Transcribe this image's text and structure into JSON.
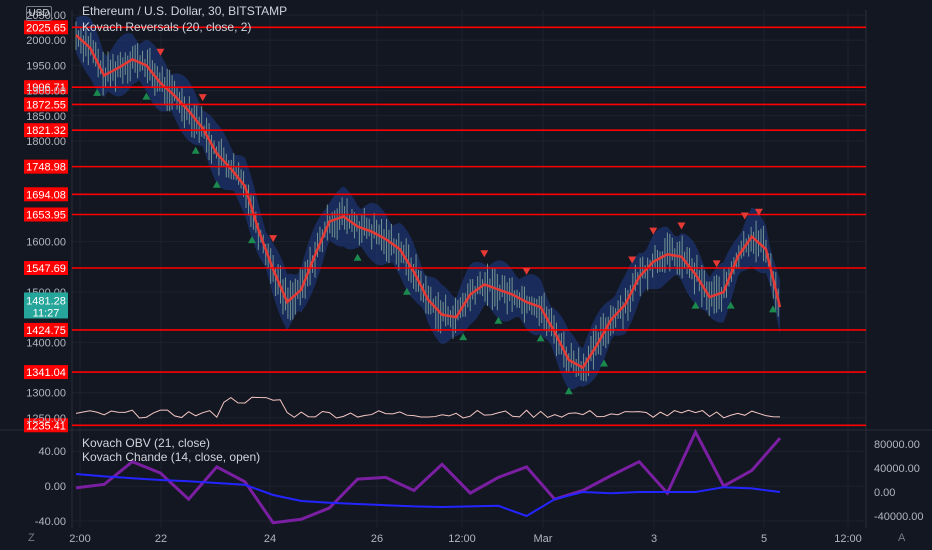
{
  "header": {
    "currency": "USD",
    "title": "Ethereum / U.S. Dollar, 30, BITSTAMP",
    "indicator1": "Kovach Reversals (20, close, 2)",
    "indicator2": "Kovach OBV (21, close)",
    "indicator3": "Kovach Chande (14, close, open)"
  },
  "current_price": {
    "value": "1481.28",
    "countdown": "11:27",
    "color": "#26a69a"
  },
  "footer": {
    "left_icon": "Z",
    "right_icon": "A"
  },
  "colors": {
    "level_line": "#ff0000",
    "band_fill": "#1f3c88",
    "mid_line": "#e53935",
    "candle": "#8fb8a6",
    "sell_marker": "#e53935",
    "buy_marker": "#1b8a4e",
    "obv_line": "#2424ff",
    "chande_line": "#7b1fa2",
    "volume_line": "#f4c7c3"
  },
  "chart_data": [
    {
      "type": "line",
      "title": "Ethereum / U.S. Dollar, 30, BITSTAMP",
      "x_ticks": [
        "2:00",
        "22",
        "24",
        "26",
        "12:00",
        "Mar",
        "3",
        "5",
        "12:00"
      ],
      "y_ticks": [
        "2050.00",
        "2000.00",
        "1950.00",
        "1900.00",
        "1850.00",
        "1800.00",
        "1600.00",
        "1500.00",
        "1400.00",
        "1300.00",
        "1250.00"
      ],
      "ylim": [
        1230,
        2060
      ],
      "levels": [
        "2025.65",
        "1906.71",
        "1872.55",
        "1821.32",
        "1748.98",
        "1694.08",
        "1653.95",
        "1547.69",
        "1424.75",
        "1341.04",
        "1235.41"
      ],
      "series": [
        {
          "x": [
            0,
            2,
            4,
            6,
            8,
            10,
            12,
            14,
            16,
            18,
            20,
            22,
            24,
            26,
            28,
            30,
            32,
            34,
            36,
            38,
            40,
            42,
            44,
            46,
            48,
            50,
            52,
            54,
            56,
            58,
            60,
            62,
            64,
            66,
            68,
            70,
            72,
            74,
            76,
            78,
            80,
            82,
            84,
            86,
            88,
            90,
            92,
            94,
            96,
            98,
            100
          ],
          "values": [
            2010,
            1985,
            1930,
            1945,
            1962,
            1950,
            1915,
            1890,
            1860,
            1825,
            1775,
            1745,
            1710,
            1620,
            1545,
            1480,
            1505,
            1575,
            1640,
            1650,
            1630,
            1620,
            1605,
            1585,
            1540,
            1485,
            1455,
            1450,
            1495,
            1515,
            1505,
            1495,
            1480,
            1470,
            1420,
            1365,
            1350,
            1395,
            1445,
            1475,
            1530,
            1560,
            1575,
            1570,
            1535,
            1490,
            1500,
            1570,
            1610,
            1585,
            1470
          ]
        }
      ],
      "legend": [
        "Kovach Reversals (20, close, 2)"
      ]
    },
    {
      "type": "line",
      "y_ticks_left": [
        "40.00",
        "0.00",
        "-40.00"
      ],
      "y_ticks_right": [
        "80000.00",
        "40000.00",
        "0.00",
        "-40000.00"
      ],
      "ylim": [
        -48,
        62
      ],
      "series": [
        {
          "x": [
            0,
            4,
            8,
            12,
            16,
            20,
            24,
            28,
            32,
            36,
            40,
            44,
            48,
            52,
            56,
            60,
            64,
            68,
            72,
            76,
            80,
            84,
            88,
            92,
            96,
            100
          ],
          "values": [
            -2,
            2,
            28,
            15,
            -15,
            22,
            5,
            -42,
            -38,
            -25,
            8,
            10,
            -5,
            25,
            -8,
            10,
            22,
            -15,
            -5,
            12,
            28,
            -8,
            62,
            0,
            18,
            55
          ]
        },
        {
          "x": [
            0,
            4,
            8,
            12,
            16,
            20,
            24,
            28,
            32,
            36,
            40,
            44,
            48,
            52,
            56,
            60,
            64,
            68,
            72,
            76,
            80,
            84,
            88,
            92,
            96,
            100
          ],
          "values": [
            30000,
            26000,
            23000,
            20000,
            18000,
            15000,
            12000,
            -5000,
            -15000,
            -18000,
            -20000,
            -22000,
            -24000,
            -25000,
            -24000,
            -23000,
            -40000,
            -12000,
            0,
            -2000,
            0,
            0,
            0,
            8000,
            6000,
            0
          ]
        }
      ],
      "legend": [
        "Kovach OBV (21, close)",
        "Kovach Chande (14, close, open)"
      ]
    }
  ]
}
